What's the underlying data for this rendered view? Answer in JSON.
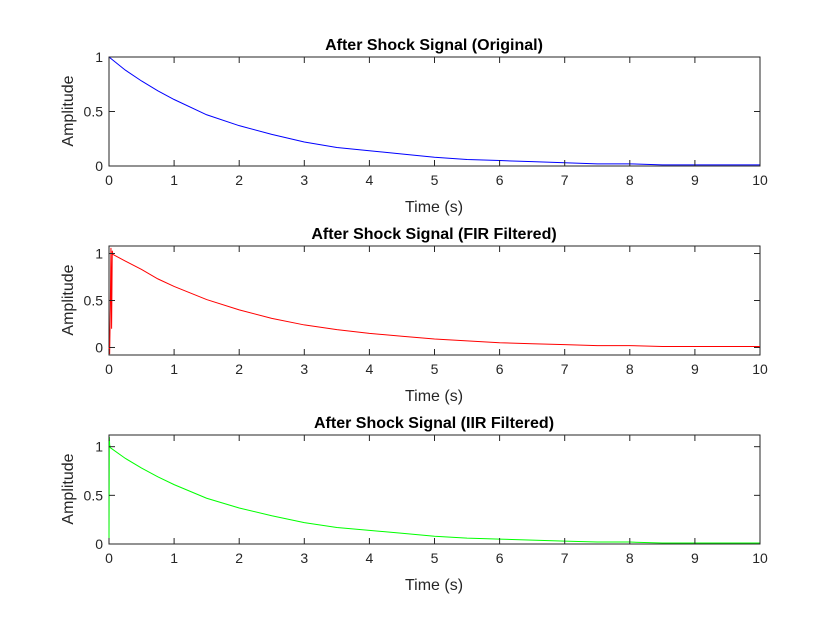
{
  "chart_data": [
    {
      "type": "line",
      "title": "After Shock Signal (Original)",
      "xlabel": "Time (s)",
      "ylabel": "Amplitude",
      "xlim": [
        0,
        10
      ],
      "ylim": [
        0,
        1
      ],
      "xticks": [
        "0",
        "1",
        "2",
        "3",
        "4",
        "5",
        "6",
        "7",
        "8",
        "9",
        "10"
      ],
      "yticks": [
        "0",
        "0.5",
        "1"
      ],
      "grid": false,
      "color": "#0000ff",
      "series": [
        {
          "x": [
            0,
            0.25,
            0.5,
            0.75,
            1,
            1.5,
            2,
            2.5,
            3,
            3.5,
            4,
            4.5,
            5,
            5.5,
            6,
            6.5,
            7,
            7.5,
            8,
            8.5,
            9,
            9.5,
            10
          ],
          "y": [
            1.0,
            0.88,
            0.78,
            0.69,
            0.61,
            0.47,
            0.37,
            0.29,
            0.22,
            0.17,
            0.14,
            0.11,
            0.08,
            0.06,
            0.05,
            0.04,
            0.03,
            0.02,
            0.02,
            0.01,
            0.01,
            0.01,
            0.01
          ]
        }
      ]
    },
    {
      "type": "line",
      "title": "After Shock Signal (FIR Filtered)",
      "xlabel": "Time (s)",
      "ylabel": "Amplitude",
      "xlim": [
        0,
        10
      ],
      "ylim": [
        -0.08,
        1.08
      ],
      "xticks": [
        "0",
        "1",
        "2",
        "3",
        "4",
        "5",
        "6",
        "7",
        "8",
        "9",
        "10"
      ],
      "yticks": [
        "0",
        "0.5",
        "1"
      ],
      "grid": false,
      "color": "#ff0000",
      "series": [
        {
          "x": [
            0,
            0.01,
            0.02,
            0.03,
            0.04,
            0.05,
            0.06,
            0.25,
            0.5,
            0.75,
            1,
            1.5,
            2,
            2.5,
            3,
            3.5,
            4,
            4.5,
            5,
            5.5,
            6,
            6.5,
            7,
            7.5,
            8,
            8.5,
            9,
            9.5,
            10
          ],
          "y": [
            0,
            -0.07,
            0.4,
            1.06,
            0.2,
            1.03,
            0.99,
            0.92,
            0.83,
            0.73,
            0.65,
            0.51,
            0.4,
            0.31,
            0.24,
            0.19,
            0.15,
            0.12,
            0.09,
            0.07,
            0.05,
            0.04,
            0.03,
            0.02,
            0.02,
            0.01,
            0.01,
            0.01,
            0.01
          ]
        }
      ]
    },
    {
      "type": "line",
      "title": "After Shock Signal (IIR Filtered)",
      "xlabel": "Time (s)",
      "ylabel": "Amplitude",
      "xlim": [
        0,
        10
      ],
      "ylim": [
        0,
        1.12
      ],
      "xticks": [
        "0",
        "1",
        "2",
        "3",
        "4",
        "5",
        "6",
        "7",
        "8",
        "9",
        "10"
      ],
      "yticks": [
        "0",
        "0.5",
        "1"
      ],
      "grid": false,
      "color": "#00ff00",
      "series": [
        {
          "x": [
            0,
            0.005,
            0.01,
            0.02,
            0.25,
            0.5,
            0.75,
            1,
            1.5,
            2,
            2.5,
            3,
            3.5,
            4,
            4.5,
            5,
            5.5,
            6,
            6.5,
            7,
            7.5,
            8,
            8.5,
            9,
            9.5,
            10
          ],
          "y": [
            0,
            1.1,
            1.02,
            0.99,
            0.88,
            0.78,
            0.69,
            0.61,
            0.47,
            0.37,
            0.29,
            0.22,
            0.17,
            0.14,
            0.11,
            0.08,
            0.06,
            0.05,
            0.04,
            0.03,
            0.02,
            0.02,
            0.01,
            0.01,
            0.01,
            0.01
          ]
        }
      ]
    }
  ]
}
